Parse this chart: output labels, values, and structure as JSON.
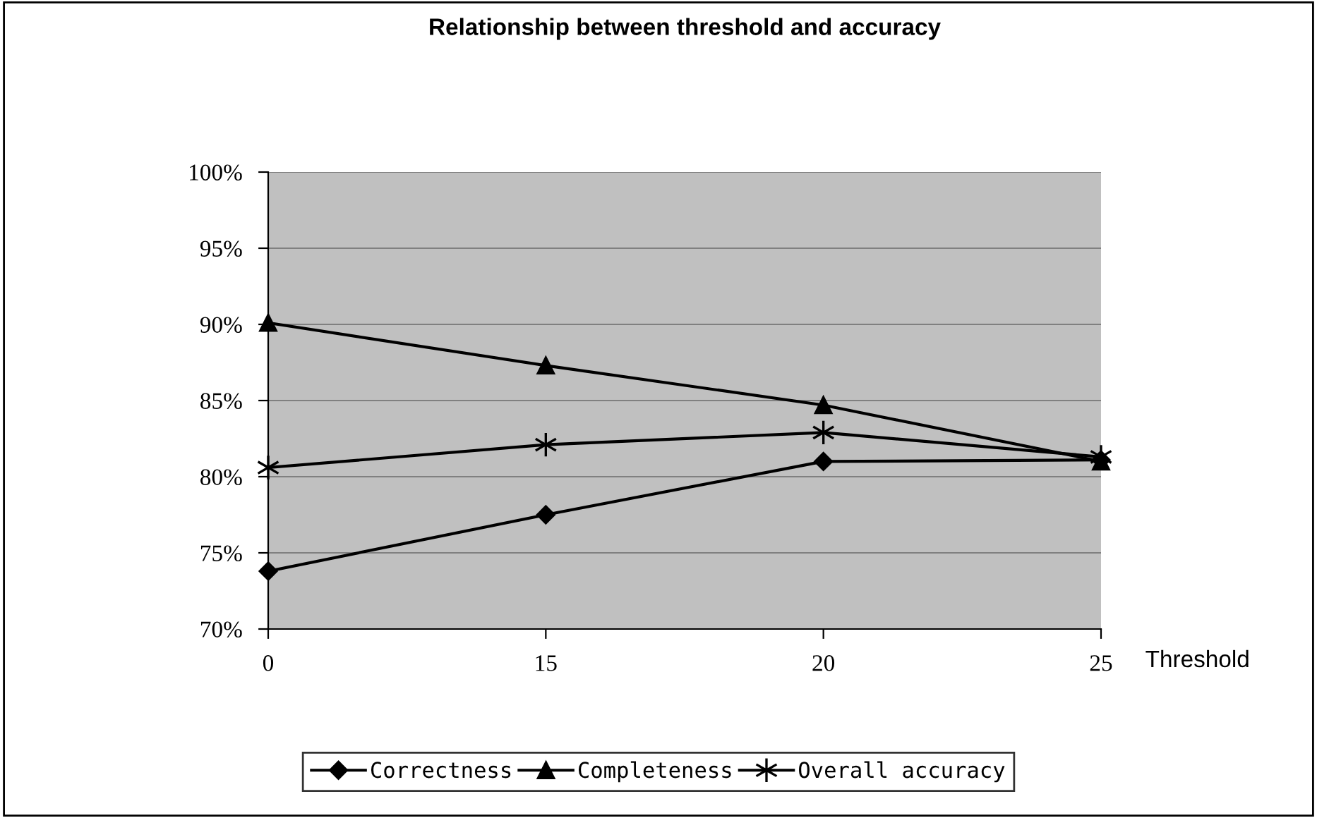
{
  "chart_data": {
    "type": "line",
    "title": "Relationship between threshold and accuracy",
    "xlabel": "Threshold",
    "categories": [
      "0",
      "15",
      "20",
      "25"
    ],
    "series": [
      {
        "name": "Correctness",
        "color": "#000000",
        "marker": "diamond",
        "values": [
          73.8,
          77.5,
          81.0,
          81.1
        ]
      },
      {
        "name": "Completeness",
        "color": "#000000",
        "marker": "triangle",
        "values": [
          90.1,
          87.3,
          84.7,
          81.0
        ]
      },
      {
        "name": "Overall accuracy",
        "color": "#000000",
        "marker": "cross",
        "values": [
          80.6,
          82.1,
          82.9,
          81.3
        ]
      }
    ],
    "ylim": [
      70,
      100
    ],
    "yticks": [
      {
        "value": 70,
        "label": "70%"
      },
      {
        "value": 75,
        "label": "75%"
      },
      {
        "value": 80,
        "label": "80%"
      },
      {
        "value": 85,
        "label": "85%"
      },
      {
        "value": 90,
        "label": "90%"
      },
      {
        "value": 95,
        "label": "95%"
      },
      {
        "value": 100,
        "label": "100%"
      }
    ],
    "grid": "y",
    "legend": "bottom",
    "line_style": "solid"
  }
}
